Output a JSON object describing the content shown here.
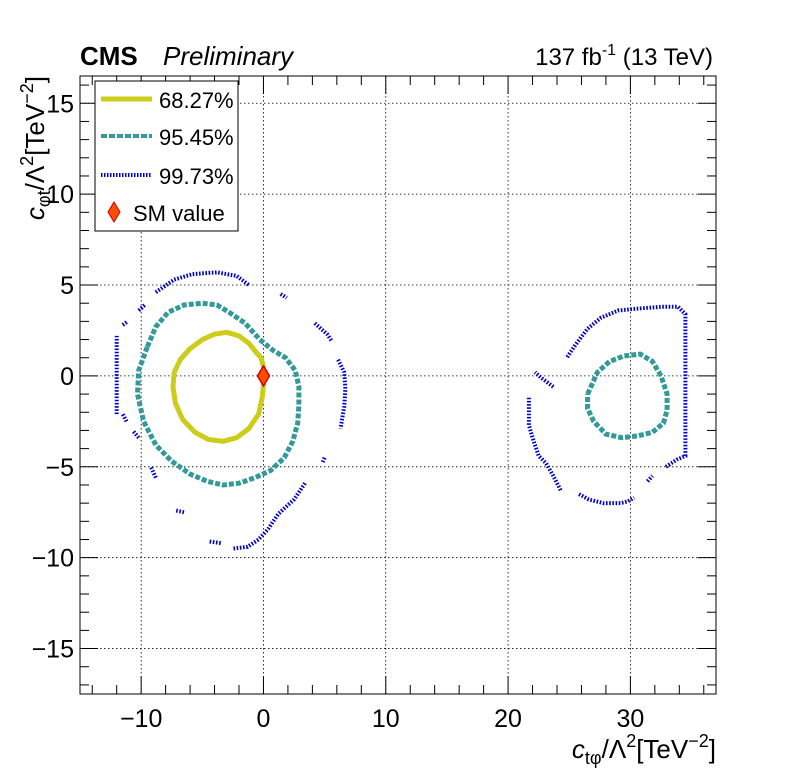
{
  "header": {
    "experiment": "CMS",
    "status": "Preliminary",
    "lumi": "137 fb",
    "lumi_sup": "-1",
    "energy": " (13 TeV)"
  },
  "chart_data": {
    "type": "scatter",
    "subtype": "contour",
    "title": "",
    "xlabel": {
      "base": "c",
      "sub": "tφ",
      "mid": "/Λ",
      "sup": "2",
      "unit": "[TeV",
      "unit_sup": "−2",
      "close": "]"
    },
    "ylabel": {
      "base": "c",
      "sub": "φt",
      "mid": "/Λ",
      "sup": "2",
      "unit": "[TeV",
      "unit_sup": "−2",
      "close": "]"
    },
    "xlim": [
      -15,
      37
    ],
    "ylim": [
      -17.5,
      16.5
    ],
    "x_ticks": [
      -10,
      0,
      10,
      20,
      30
    ],
    "x_tick_labels": [
      "−10",
      "0",
      "10",
      "20",
      "30"
    ],
    "y_ticks": [
      -15,
      -10,
      -5,
      0,
      5,
      10,
      15
    ],
    "y_tick_labels": [
      "−15",
      "−10",
      "−5",
      "0",
      "5",
      "10",
      "15"
    ],
    "grid": true,
    "legend_position": "top-left",
    "colors": {
      "cl68": "#cccc1a",
      "cl95": "#339999",
      "cl99": "#0000cc",
      "sm": "#ff4d00",
      "sm_edge": "#cc0000"
    },
    "series": [
      {
        "name": "68.27%",
        "style": "solid",
        "contours": [
          [
            [
              0.0,
              0.5
            ],
            [
              -0.2,
              1.0
            ],
            [
              -0.6,
              1.3
            ],
            [
              -1.2,
              1.8
            ],
            [
              -2.0,
              2.2
            ],
            [
              -3.0,
              2.4
            ],
            [
              -4.0,
              2.3
            ],
            [
              -5.0,
              2.0
            ],
            [
              -6.0,
              1.5
            ],
            [
              -6.8,
              0.9
            ],
            [
              -7.3,
              0.2
            ],
            [
              -7.4,
              -0.6
            ],
            [
              -7.2,
              -1.5
            ],
            [
              -6.6,
              -2.4
            ],
            [
              -5.6,
              -3.1
            ],
            [
              -4.5,
              -3.5
            ],
            [
              -3.3,
              -3.6
            ],
            [
              -2.2,
              -3.4
            ],
            [
              -1.2,
              -2.9
            ],
            [
              -0.4,
              -2.1
            ],
            [
              -0.1,
              -1.2
            ],
            [
              0.0,
              -0.5
            ],
            [
              0.0,
              0.5
            ]
          ]
        ]
      },
      {
        "name": "95.45%",
        "style": "dashed",
        "contours": [
          [
            [
              -9.5,
              1.6
            ],
            [
              -8.8,
              2.7
            ],
            [
              -7.8,
              3.5
            ],
            [
              -6.5,
              3.9
            ],
            [
              -5.0,
              4.0
            ],
            [
              -3.8,
              3.9
            ],
            [
              -2.8,
              3.5
            ],
            [
              -1.5,
              2.9
            ],
            [
              -0.3,
              2.0
            ],
            [
              0.8,
              1.4
            ],
            [
              1.8,
              1.0
            ],
            [
              2.6,
              0.3
            ],
            [
              2.9,
              -0.6
            ],
            [
              2.9,
              -1.6
            ],
            [
              2.8,
              -2.6
            ],
            [
              2.4,
              -3.6
            ],
            [
              1.7,
              -4.5
            ],
            [
              0.6,
              -5.2
            ],
            [
              -0.7,
              -5.6
            ],
            [
              -2.0,
              -5.9
            ],
            [
              -3.3,
              -6.0
            ],
            [
              -4.6,
              -5.8
            ],
            [
              -6.0,
              -5.4
            ],
            [
              -7.5,
              -4.7
            ],
            [
              -8.8,
              -3.8
            ],
            [
              -9.8,
              -2.5
            ],
            [
              -10.3,
              -1.0
            ],
            [
              -10.2,
              0.3
            ],
            [
              -9.5,
              1.6
            ]
          ],
          [
            [
              26.5,
              -1.0
            ],
            [
              27.3,
              0.2
            ],
            [
              28.3,
              0.8
            ],
            [
              29.5,
              1.1
            ],
            [
              30.8,
              1.2
            ],
            [
              31.8,
              0.8
            ],
            [
              32.5,
              0.0
            ],
            [
              33.0,
              -1.0
            ],
            [
              33.0,
              -1.9
            ],
            [
              32.7,
              -2.6
            ],
            [
              31.8,
              -3.1
            ],
            [
              30.6,
              -3.3
            ],
            [
              29.3,
              -3.4
            ],
            [
              28.0,
              -3.2
            ],
            [
              27.0,
              -2.5
            ],
            [
              26.5,
              -1.8
            ],
            [
              26.5,
              -1.0
            ]
          ]
        ]
      },
      {
        "name": "99.73%",
        "style": "dotted",
        "contours": [
          [
            [
              -12.0,
              -2.1
            ],
            [
              -12.0,
              2.2
            ]
          ],
          [
            [
              -11.5,
              2.8
            ],
            [
              -11.1,
              3.0
            ]
          ],
          [
            [
              -10.2,
              3.6
            ],
            [
              -9.7,
              3.9
            ]
          ],
          [
            [
              -8.8,
              4.6
            ],
            [
              -7.3,
              5.3
            ],
            [
              -5.8,
              5.6
            ],
            [
              -3.8,
              5.7
            ],
            [
              -2.2,
              5.5
            ],
            [
              -1.2,
              5.0
            ]
          ],
          [
            [
              1.4,
              4.5
            ],
            [
              1.9,
              4.3
            ]
          ],
          [
            [
              4.2,
              2.9
            ],
            [
              5.2,
              2.3
            ],
            [
              5.6,
              1.9
            ]
          ],
          [
            [
              6.1,
              0.9
            ],
            [
              6.6,
              0.2
            ],
            [
              6.7,
              -0.7
            ],
            [
              6.6,
              -1.7
            ],
            [
              6.3,
              -2.9
            ]
          ],
          [
            [
              5.0,
              -4.5
            ],
            [
              4.8,
              -4.8
            ]
          ],
          [
            [
              3.4,
              -5.9
            ],
            [
              3.0,
              -6.3
            ],
            [
              2.5,
              -6.8
            ],
            [
              1.2,
              -7.6
            ],
            [
              0.4,
              -8.4
            ],
            [
              -0.4,
              -9.0
            ],
            [
              -1.3,
              -9.4
            ],
            [
              -2.5,
              -9.5
            ]
          ],
          [
            [
              -3.5,
              -9.2
            ],
            [
              -4.5,
              -9.1
            ]
          ],
          [
            [
              -6.5,
              -7.5
            ],
            [
              -7.2,
              -7.4
            ]
          ],
          [
            [
              -8.8,
              -5.6
            ],
            [
              -9.2,
              -5.0
            ]
          ],
          [
            [
              -10.2,
              -3.4
            ],
            [
              -10.7,
              -3.0
            ]
          ],
          [
            [
              -11.2,
              -2.5
            ],
            [
              -11.5,
              -2.1
            ]
          ],
          [
            [
              23.7,
              -0.6
            ],
            [
              22.7,
              -0.1
            ],
            [
              22.2,
              0.2
            ]
          ],
          [
            [
              21.7,
              -1.2
            ],
            [
              21.7,
              -2.7
            ],
            [
              22.0,
              -3.4
            ],
            [
              22.5,
              -4.4
            ],
            [
              23.1,
              -4.8
            ],
            [
              23.7,
              -5.5
            ],
            [
              24.3,
              -6.3
            ]
          ],
          [
            [
              25.8,
              -6.5
            ],
            [
              26.6,
              -6.8
            ],
            [
              27.8,
              -7.0
            ],
            [
              29.2,
              -7.0
            ],
            [
              29.8,
              -6.9
            ],
            [
              30.3,
              -6.7
            ]
          ],
          [
            [
              31.4,
              -5.8
            ],
            [
              31.8,
              -5.5
            ]
          ],
          [
            [
              32.9,
              -5.0
            ],
            [
              33.8,
              -4.6
            ],
            [
              34.5,
              -4.4
            ],
            [
              34.5,
              3.4
            ],
            [
              33.9,
              3.8
            ],
            [
              32.5,
              3.8
            ],
            [
              30.5,
              3.7
            ],
            [
              29.0,
              3.6
            ],
            [
              27.6,
              3.2
            ],
            [
              26.5,
              2.6
            ],
            [
              25.5,
              1.7
            ],
            [
              24.8,
              1.0
            ]
          ]
        ]
      },
      {
        "name": "SM value",
        "style": "marker",
        "points": [
          [
            0,
            0
          ]
        ]
      }
    ]
  }
}
